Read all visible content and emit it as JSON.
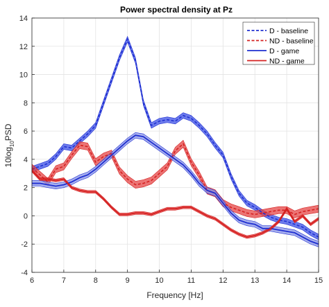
{
  "chart_data": {
    "type": "line",
    "title": "Power spectral density at Pz",
    "xlabel": "Frequency [Hz]",
    "ylabel": {
      "base": "10log",
      "sub": "10",
      "rest": "PSD"
    },
    "xlim": [
      6,
      15
    ],
    "ylim": [
      -4,
      14
    ],
    "xticks": [
      6,
      7,
      8,
      9,
      10,
      11,
      12,
      13,
      14,
      15
    ],
    "yticks": [
      -4,
      -2,
      0,
      2,
      4,
      6,
      8,
      10,
      12,
      14
    ],
    "grid": true,
    "legend_position": "top-right",
    "x": [
      6.0,
      6.25,
      6.5,
      6.75,
      7.0,
      7.25,
      7.5,
      7.75,
      8.0,
      8.25,
      8.5,
      8.75,
      9.0,
      9.25,
      9.5,
      9.75,
      10.0,
      10.25,
      10.5,
      10.75,
      11.0,
      11.25,
      11.5,
      11.75,
      12.0,
      12.25,
      12.5,
      12.75,
      13.0,
      13.25,
      13.5,
      13.75,
      14.0,
      14.25,
      14.5,
      14.75,
      15.0
    ],
    "series": [
      {
        "name": "D - baseline",
        "color": "#1f2fd1",
        "band_color": "#3b4fe6",
        "dash": "dashed",
        "values": [
          3.3,
          3.5,
          3.7,
          4.2,
          4.9,
          4.8,
          5.3,
          5.8,
          6.4,
          8.0,
          9.6,
          11.2,
          12.5,
          11.0,
          8.0,
          6.4,
          6.7,
          6.8,
          6.7,
          7.1,
          6.9,
          6.4,
          5.8,
          5.0,
          4.3,
          2.8,
          1.6,
          0.9,
          0.6,
          0.2,
          -0.1,
          -0.3,
          -0.4,
          -0.6,
          -0.8,
          -1.2,
          -1.5
        ],
        "band": 0.2
      },
      {
        "name": "ND - baseline",
        "color": "#d42020",
        "band_color": "#e64646",
        "dash": "dashed",
        "values": [
          3.4,
          2.9,
          2.4,
          3.3,
          3.5,
          4.3,
          5.0,
          4.9,
          3.8,
          4.2,
          4.4,
          3.2,
          2.6,
          2.2,
          2.3,
          2.5,
          3.0,
          3.5,
          4.6,
          5.1,
          3.8,
          2.9,
          1.8,
          1.6,
          0.9,
          0.6,
          0.4,
          0.2,
          0.1,
          0.2,
          0.3,
          0.4,
          0.4,
          0.1,
          0.3,
          0.4,
          0.5
        ],
        "band": 0.25
      },
      {
        "name": "D - game",
        "color": "#1f2fd1",
        "band_color": "#8a94e8",
        "dash": "solid",
        "values": [
          2.3,
          2.3,
          2.2,
          2.1,
          2.2,
          2.4,
          2.7,
          2.9,
          3.3,
          3.8,
          4.3,
          4.8,
          5.3,
          5.7,
          5.6,
          5.2,
          4.8,
          4.4,
          4.0,
          3.6,
          3.0,
          2.3,
          1.8,
          1.6,
          0.9,
          0.2,
          -0.3,
          -0.5,
          -0.6,
          -0.9,
          -0.9,
          -1.0,
          -1.1,
          -1.2,
          -1.5,
          -1.8,
          -2.0
        ],
        "band": 0.2
      },
      {
        "name": "ND - game",
        "color": "#d42020",
        "band_color": "#e64646",
        "dash": "solid",
        "values": [
          3.2,
          2.6,
          2.6,
          2.5,
          2.6,
          2.0,
          1.8,
          1.7,
          1.7,
          1.2,
          0.6,
          0.1,
          0.1,
          0.2,
          0.2,
          0.1,
          0.3,
          0.5,
          0.5,
          0.6,
          0.6,
          0.3,
          0.0,
          -0.2,
          -0.6,
          -1.0,
          -1.3,
          -1.5,
          -1.4,
          -1.2,
          -0.9,
          -0.4,
          0.5,
          -0.4,
          0.0,
          -0.6,
          -0.2
        ],
        "band": 0.1
      }
    ]
  }
}
